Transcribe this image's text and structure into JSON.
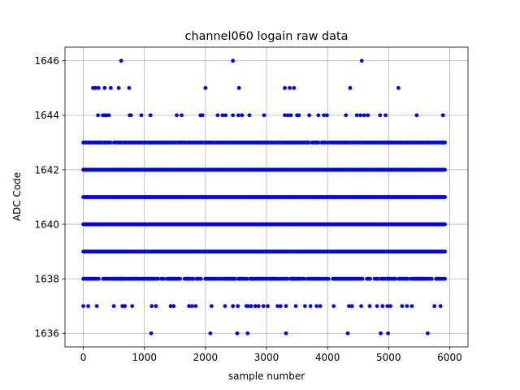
{
  "chart_data": {
    "type": "scatter",
    "title": "channel060 logain raw data",
    "xlabel": "sample number",
    "ylabel": "ADC Code",
    "xlim": [
      -300,
      6300
    ],
    "ylim": [
      1635.5,
      1646.5
    ],
    "xticks": [
      0,
      1000,
      2000,
      3000,
      4000,
      5000,
      6000
    ],
    "yticks": [
      1636,
      1638,
      1640,
      1642,
      1644,
      1646
    ],
    "grid": true,
    "marker_color": "#0000ff",
    "marker": "circle",
    "x_range": [
      0,
      5930
    ],
    "dense_levels": [
      {
        "code": 1643,
        "density": 0.85
      },
      {
        "code": 1642,
        "density": 1.0
      },
      {
        "code": 1641,
        "density": 1.0
      },
      {
        "code": 1640,
        "density": 1.0
      },
      {
        "code": 1639,
        "density": 1.0
      },
      {
        "code": 1638,
        "density": 0.75
      }
    ],
    "sparse_points": [
      {
        "x": 620,
        "y": 1646
      },
      {
        "x": 2450,
        "y": 1646
      },
      {
        "x": 4560,
        "y": 1646
      },
      {
        "x": 160,
        "y": 1645
      },
      {
        "x": 200,
        "y": 1645
      },
      {
        "x": 250,
        "y": 1645
      },
      {
        "x": 350,
        "y": 1645
      },
      {
        "x": 450,
        "y": 1645
      },
      {
        "x": 580,
        "y": 1645
      },
      {
        "x": 750,
        "y": 1645
      },
      {
        "x": 2000,
        "y": 1645
      },
      {
        "x": 2550,
        "y": 1645
      },
      {
        "x": 3300,
        "y": 1645
      },
      {
        "x": 3380,
        "y": 1645
      },
      {
        "x": 3450,
        "y": 1645
      },
      {
        "x": 4370,
        "y": 1645
      },
      {
        "x": 5160,
        "y": 1645
      },
      {
        "x": 240,
        "y": 1644
      },
      {
        "x": 320,
        "y": 1644
      },
      {
        "x": 350,
        "y": 1644
      },
      {
        "x": 380,
        "y": 1644
      },
      {
        "x": 420,
        "y": 1644
      },
      {
        "x": 760,
        "y": 1644
      },
      {
        "x": 780,
        "y": 1644
      },
      {
        "x": 950,
        "y": 1644
      },
      {
        "x": 1100,
        "y": 1644
      },
      {
        "x": 1530,
        "y": 1644
      },
      {
        "x": 1610,
        "y": 1644
      },
      {
        "x": 1920,
        "y": 1644
      },
      {
        "x": 1950,
        "y": 1644
      },
      {
        "x": 2200,
        "y": 1644
      },
      {
        "x": 2280,
        "y": 1644
      },
      {
        "x": 2330,
        "y": 1644
      },
      {
        "x": 2450,
        "y": 1644
      },
      {
        "x": 2540,
        "y": 1644
      },
      {
        "x": 2600,
        "y": 1644
      },
      {
        "x": 2720,
        "y": 1644
      },
      {
        "x": 2960,
        "y": 1644
      },
      {
        "x": 3300,
        "y": 1644
      },
      {
        "x": 3350,
        "y": 1644
      },
      {
        "x": 3400,
        "y": 1644
      },
      {
        "x": 3500,
        "y": 1644
      },
      {
        "x": 3530,
        "y": 1644
      },
      {
        "x": 3700,
        "y": 1644
      },
      {
        "x": 3850,
        "y": 1644
      },
      {
        "x": 3940,
        "y": 1644
      },
      {
        "x": 3990,
        "y": 1644
      },
      {
        "x": 4300,
        "y": 1644
      },
      {
        "x": 4480,
        "y": 1644
      },
      {
        "x": 4540,
        "y": 1644
      },
      {
        "x": 4600,
        "y": 1644
      },
      {
        "x": 4660,
        "y": 1644
      },
      {
        "x": 4860,
        "y": 1644
      },
      {
        "x": 4950,
        "y": 1644
      },
      {
        "x": 5460,
        "y": 1644
      },
      {
        "x": 5890,
        "y": 1644
      },
      {
        "x": 0,
        "y": 1637
      },
      {
        "x": 80,
        "y": 1637
      },
      {
        "x": 220,
        "y": 1637
      },
      {
        "x": 500,
        "y": 1637
      },
      {
        "x": 640,
        "y": 1637
      },
      {
        "x": 680,
        "y": 1637
      },
      {
        "x": 800,
        "y": 1637
      },
      {
        "x": 1120,
        "y": 1637
      },
      {
        "x": 1190,
        "y": 1637
      },
      {
        "x": 1430,
        "y": 1637
      },
      {
        "x": 1480,
        "y": 1637
      },
      {
        "x": 1730,
        "y": 1637
      },
      {
        "x": 1780,
        "y": 1637
      },
      {
        "x": 1840,
        "y": 1637
      },
      {
        "x": 2100,
        "y": 1637
      },
      {
        "x": 2320,
        "y": 1637
      },
      {
        "x": 2450,
        "y": 1637
      },
      {
        "x": 2530,
        "y": 1637
      },
      {
        "x": 2670,
        "y": 1637
      },
      {
        "x": 2700,
        "y": 1637
      },
      {
        "x": 2750,
        "y": 1637
      },
      {
        "x": 2820,
        "y": 1637
      },
      {
        "x": 2870,
        "y": 1637
      },
      {
        "x": 2950,
        "y": 1637
      },
      {
        "x": 3020,
        "y": 1637
      },
      {
        "x": 3180,
        "y": 1637
      },
      {
        "x": 3230,
        "y": 1637
      },
      {
        "x": 3320,
        "y": 1637
      },
      {
        "x": 3480,
        "y": 1637
      },
      {
        "x": 3630,
        "y": 1637
      },
      {
        "x": 3720,
        "y": 1637
      },
      {
        "x": 3820,
        "y": 1637
      },
      {
        "x": 3880,
        "y": 1637
      },
      {
        "x": 4100,
        "y": 1637
      },
      {
        "x": 4350,
        "y": 1637
      },
      {
        "x": 4400,
        "y": 1637
      },
      {
        "x": 4550,
        "y": 1637
      },
      {
        "x": 4690,
        "y": 1637
      },
      {
        "x": 4810,
        "y": 1637
      },
      {
        "x": 4900,
        "y": 1637
      },
      {
        "x": 4980,
        "y": 1637
      },
      {
        "x": 5030,
        "y": 1637
      },
      {
        "x": 5220,
        "y": 1637
      },
      {
        "x": 5300,
        "y": 1637
      },
      {
        "x": 5380,
        "y": 1637
      },
      {
        "x": 5750,
        "y": 1637
      },
      {
        "x": 5850,
        "y": 1637
      },
      {
        "x": 1110,
        "y": 1636
      },
      {
        "x": 2080,
        "y": 1636
      },
      {
        "x": 2520,
        "y": 1636
      },
      {
        "x": 2690,
        "y": 1636
      },
      {
        "x": 3320,
        "y": 1636
      },
      {
        "x": 4330,
        "y": 1636
      },
      {
        "x": 4870,
        "y": 1636
      },
      {
        "x": 4990,
        "y": 1636
      },
      {
        "x": 5640,
        "y": 1636
      }
    ]
  }
}
